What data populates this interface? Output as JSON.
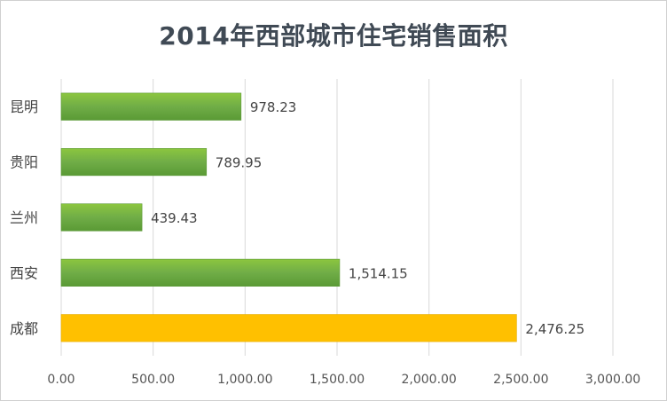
{
  "chart_data": {
    "type": "bar",
    "orientation": "horizontal",
    "title": "2014年西部城市住宅销售面积",
    "categories": [
      "昆明",
      "贵阳",
      "兰州",
      "西安",
      "成都"
    ],
    "values": [
      978.23,
      789.95,
      439.43,
      1514.15,
      2476.25
    ],
    "value_labels": [
      "978.23",
      "789.95",
      "439.43",
      "1,514.15",
      "2,476.25"
    ],
    "highlight_index": 4,
    "xlim": [
      0,
      3000
    ],
    "xticks": [
      0,
      500,
      1000,
      1500,
      2000,
      2500,
      3000
    ],
    "xtick_labels": [
      "0.00",
      "500.00",
      "1,000.00",
      "1,500.00",
      "2,000.00",
      "2,500.00",
      "3,000.00"
    ],
    "grid": true,
    "legend": "none",
    "colors": {
      "bar": "#70ad47",
      "bar_highlight": "#ffc000",
      "grid": "#d9d9d9",
      "title": "#404a55"
    }
  }
}
